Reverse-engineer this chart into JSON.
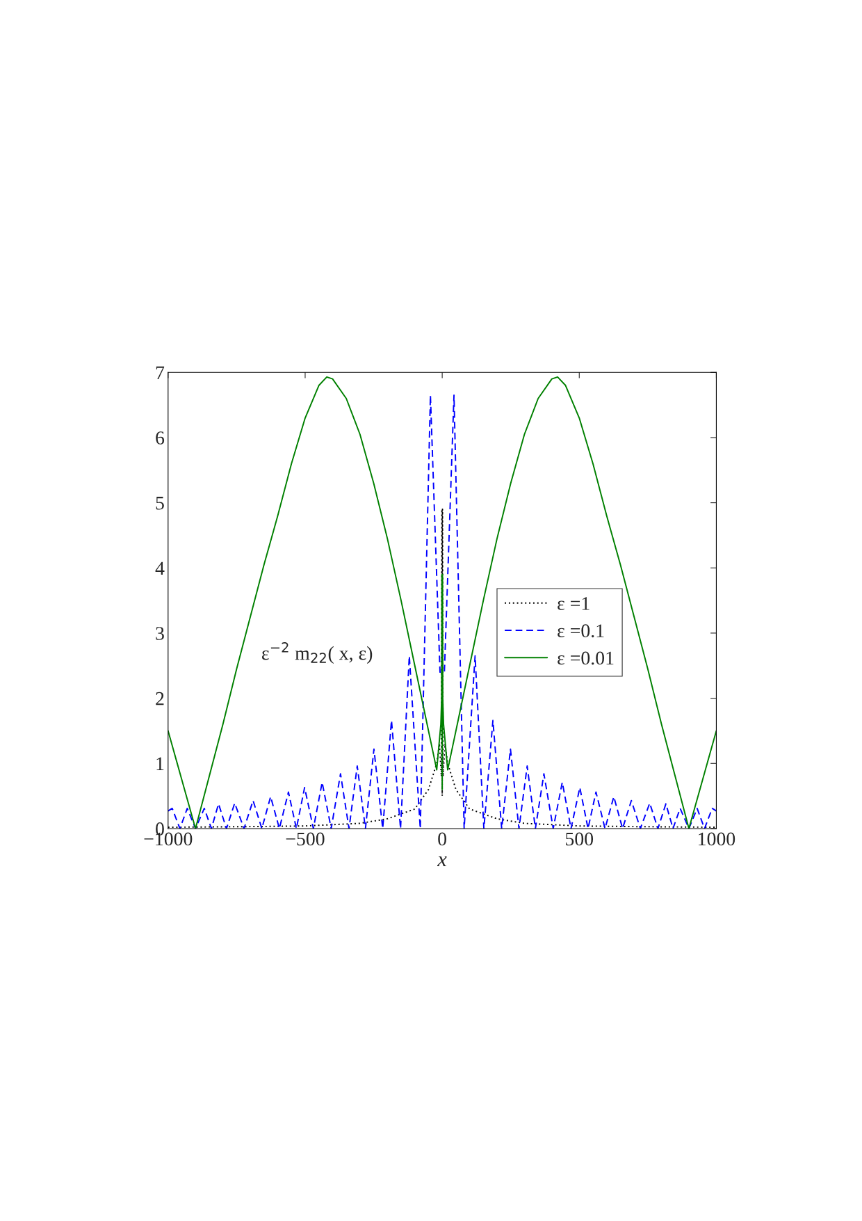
{
  "chart_data": {
    "type": "line",
    "xlabel": "x",
    "xlim": [
      -1000,
      1000
    ],
    "ylim": [
      0,
      7
    ],
    "xticks": [
      {
        "value": -1000,
        "label": "−1000"
      },
      {
        "value": -500,
        "label": "−500"
      },
      0,
      500,
      1000
    ],
    "yticks": [
      0,
      1,
      2,
      3,
      4,
      5,
      6,
      7
    ],
    "grid": false,
    "legend": "right",
    "annotations": [
      "ε$^{−2}$ m$_{22}$( x, ε)"
    ],
    "series": [
      {
        "name": "ε =1",
        "color": "#000000",
        "line_style": "dotted",
        "x": [
          -1000,
          -700,
          -500,
          -400,
          -300,
          -200,
          -100,
          -50,
          -20,
          -10,
          -3,
          -1,
          0,
          1,
          3,
          10,
          20,
          50,
          100,
          200,
          300,
          400,
          500,
          700,
          1000
        ],
        "values": [
          0.02,
          0.03,
          0.04,
          0.06,
          0.08,
          0.15,
          0.3,
          0.6,
          1.0,
          1.3,
          0.8,
          4.9,
          0.5,
          4.9,
          0.8,
          1.3,
          1.0,
          0.6,
          0.3,
          0.15,
          0.08,
          0.06,
          0.04,
          0.03,
          0.02
        ]
      },
      {
        "name": "ε =0.1",
        "color": "#0000ff",
        "line_style": "dashed",
        "x": [
          -1000,
          -985,
          -957,
          -930,
          -900,
          -868,
          -842,
          -816,
          -787,
          -757,
          -723,
          -690,
          -658,
          -626,
          -594,
          -561,
          -532,
          -502,
          -470,
          -438,
          -405,
          -371,
          -340,
          -310,
          -280,
          -249,
          -217,
          -185,
          -152,
          -120,
          -80,
          -43,
          -8,
          8,
          43,
          80,
          120,
          152,
          185,
          217,
          249,
          280,
          310,
          340,
          371,
          405,
          438,
          470,
          502,
          532,
          561,
          594,
          626,
          658,
          690,
          723,
          757,
          787,
          816,
          842,
          868,
          900,
          930,
          957,
          985,
          1000
        ],
        "values": [
          0.27,
          0.31,
          0,
          0.31,
          0,
          0.31,
          0,
          0.38,
          0,
          0.39,
          0,
          0.43,
          0,
          0.49,
          0,
          0.56,
          0,
          0.63,
          0,
          0.71,
          0,
          0.84,
          0,
          0.96,
          0,
          1.22,
          0,
          1.66,
          0,
          2.65,
          0,
          6.65,
          2.4,
          2.4,
          6.65,
          0,
          2.65,
          0,
          1.66,
          0,
          1.22,
          0,
          0.96,
          0,
          0.84,
          0,
          0.71,
          0,
          0.63,
          0,
          0.56,
          0,
          0.49,
          0,
          0.43,
          0,
          0.39,
          0,
          0.38,
          0,
          0.31,
          0,
          0.31,
          0,
          0.31,
          0.27
        ]
      },
      {
        "name": "ε =0.01",
        "color": "#008000",
        "line_style": "solid",
        "x": [
          -1000,
          -950,
          -900,
          -850,
          -800,
          -750,
          -700,
          -650,
          -600,
          -550,
          -500,
          -450,
          -421,
          -400,
          -350,
          -300,
          -250,
          -200,
          -150,
          -100,
          -60,
          -30,
          -20,
          -5,
          -2,
          -1,
          0,
          1,
          2,
          5,
          20,
          30,
          60,
          100,
          150,
          200,
          250,
          300,
          350,
          400,
          421,
          450,
          500,
          550,
          600,
          650,
          700,
          750,
          800,
          850,
          900,
          950,
          1000
        ],
        "values": [
          1.5,
          0.75,
          0,
          0.8,
          1.6,
          2.45,
          3.25,
          4.05,
          4.8,
          5.6,
          6.3,
          6.8,
          6.93,
          6.9,
          6.6,
          6.05,
          5.3,
          4.45,
          3.5,
          2.5,
          1.7,
          1.1,
          0.9,
          1.6,
          2.0,
          3.9,
          0.6,
          3.9,
          2.0,
          1.6,
          0.9,
          1.1,
          1.7,
          2.5,
          3.5,
          4.45,
          5.3,
          6.05,
          6.6,
          6.9,
          6.93,
          6.8,
          6.3,
          5.6,
          4.8,
          4.05,
          3.25,
          2.45,
          1.6,
          0.8,
          0,
          0.75,
          1.5
        ]
      }
    ]
  }
}
